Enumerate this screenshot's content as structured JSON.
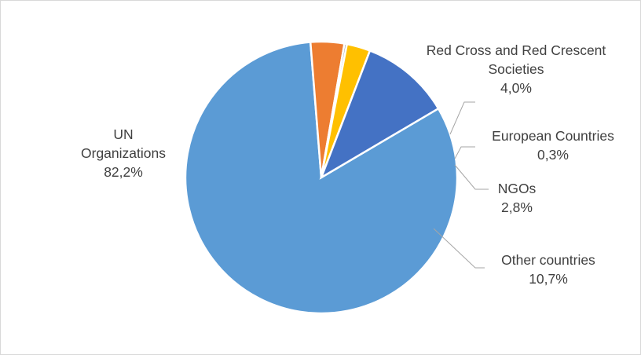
{
  "chart_data": {
    "type": "pie",
    "title": "",
    "slices": [
      {
        "name": "UN Organizations",
        "label_lines": [
          "UN",
          "Organizations"
        ],
        "value": 82.2,
        "value_label": "82,2%",
        "color": "#5B9BD5"
      },
      {
        "name": "Red Cross and Red Crescent Societies",
        "label_lines": [
          "Red Cross and Red Crescent",
          "Societies"
        ],
        "value": 4.0,
        "value_label": "4,0%",
        "color": "#ED7D31"
      },
      {
        "name": "European Countries",
        "label_lines": [
          "European Countries"
        ],
        "value": 0.3,
        "value_label": "0,3%",
        "color": "#A5A5A5"
      },
      {
        "name": "NGOs",
        "label_lines": [
          "NGOs"
        ],
        "value": 2.8,
        "value_label": "2,8%",
        "color": "#FFC000"
      },
      {
        "name": "Other countries",
        "label_lines": [
          "Other countries"
        ],
        "value": 10.7,
        "value_label": "10,7%",
        "color": "#4472C4"
      }
    ],
    "legend": "none",
    "data_labels": "outside with leader lines"
  }
}
